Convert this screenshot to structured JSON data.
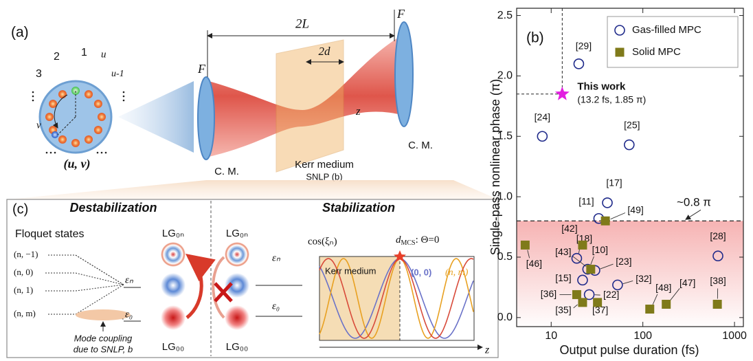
{
  "panel_a": {
    "label": "(a)",
    "mode_numbers": [
      "1",
      "2",
      "3"
    ],
    "u": "u",
    "u_minus_1": "u-1",
    "v": "v",
    "coordinate": "(u, v)",
    "cavity_length": "2L",
    "focal_left": "F",
    "focal_right": "F",
    "crystal_length": "2d",
    "axis_z": "z",
    "mirror_left": "C. M.",
    "mirror_right": "C. M.",
    "medium": "Kerr medium",
    "snlp": "SNLP (b)"
  },
  "panel_c": {
    "label": "(c)",
    "destabilization": {
      "title": "Destabilization",
      "floquet": "Floquet states",
      "states": [
        "(n, −1)",
        "(n, 0)",
        "(n, 1)",
        "(n, m)"
      ],
      "eps_n": "εₙ",
      "eps_0": "ε₀",
      "lg_top": "LG₀ₙ",
      "lg_bottom": "LG₀₀",
      "coupling": [
        "Mode coupling",
        "due to SNLP, b"
      ]
    },
    "stabilization": {
      "title": "Stabilization",
      "lg_top": "LG₀ₙ",
      "lg_bottom": "LG₀₀",
      "eps_n": "εₙ",
      "eps_0": "ε₀",
      "y_label": "cos(ξₙ)",
      "d": "d",
      "d_sub": "MCS",
      "condition": ": Θ=0",
      "medium": "Kerr medium",
      "mode_00": "(0, 0)",
      "mode_nm": "(n, m)",
      "axis_z": "z"
    }
  },
  "chart_data": {
    "type": "scatter",
    "panel_label": "(b)",
    "x_label": "Output pulse duration (fs)",
    "y_label": "Single-pass nonlinear phase (π)",
    "xscale": "log",
    "xlim": [
      4.2,
      1250
    ],
    "ylim": [
      -0.075,
      2.56
    ],
    "xticks": [
      10,
      100,
      1000
    ],
    "yticks": [
      {
        "value": 0,
        "label": "0.0"
      },
      {
        "value": 0.5,
        "label": "0.5"
      },
      {
        "value": 1,
        "label": "1.0"
      },
      {
        "value": 1.5,
        "label": "1.5"
      },
      {
        "value": 2,
        "label": "2.0"
      },
      {
        "value": 2.5,
        "label": "2.5"
      }
    ],
    "legend": "upper right",
    "series": [
      {
        "name": "Gas-filled MPC",
        "color": "#1f2a8a",
        "marker": "circle",
        "x": [
          20,
          8,
          71,
          41,
          33,
          19,
          25,
          30,
          22,
          53,
          26,
          660
        ],
        "values": [
          2.1,
          1.5,
          1.43,
          0.95,
          0.82,
          0.49,
          0.4,
          0.39,
          0.31,
          0.27,
          0.19,
          0.51
        ],
        "point_labels": [
          "[29]",
          "[24]",
          "[25]",
          "[17]",
          "[11]",
          "[18]",
          "[10]",
          "[23]",
          "[15]",
          "[32]",
          "[22]",
          "[28]"
        ]
      },
      {
        "name": "Solid MPC",
        "color": "#7f7a1a",
        "marker": "square",
        "x": [
          39,
          5.2,
          22,
          27,
          19,
          22,
          32,
          119,
          180,
          650
        ],
        "values": [
          0.8,
          0.6,
          0.6,
          0.4,
          0.19,
          0.125,
          0.125,
          0.07,
          0.11,
          0.11
        ],
        "point_labels": [
          "[49]",
          "[46]",
          "[42]",
          "[43]",
          "[36]",
          "[35]",
          "[37]",
          "[48]",
          "[47]",
          "[38]"
        ]
      }
    ],
    "highlight": {
      "name": "This work",
      "detail": "(13.2 fs, 1.85 π)",
      "x": 13.2,
      "value": 1.85,
      "color": "#e21fe0"
    },
    "threshold": {
      "value": 0.8,
      "label": "~0.8 π",
      "fill": "#f39a9a"
    }
  }
}
